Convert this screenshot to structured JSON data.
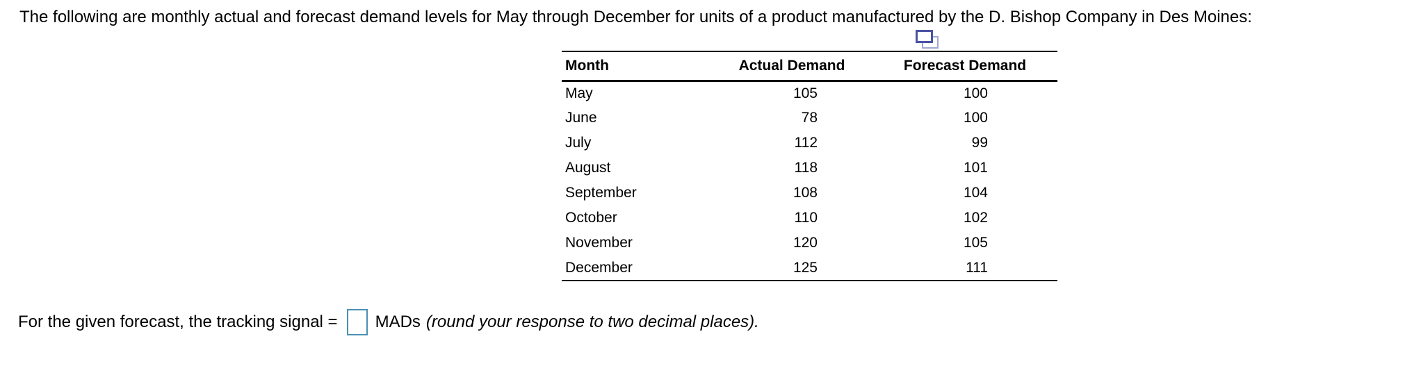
{
  "title": "The following are monthly actual and forecast demand levels for May through December for units of a product manufactured by the D. Bishop Company in Des Moines:",
  "icons": {
    "copy_icon_name": "copy-table-icon"
  },
  "table": {
    "headers": [
      "Month",
      "Actual Demand",
      "Forecast Demand"
    ],
    "rows": [
      {
        "month": "May",
        "actual": "105",
        "forecast": "100"
      },
      {
        "month": "June",
        "actual": "78",
        "forecast": "100"
      },
      {
        "month": "July",
        "actual": "112",
        "forecast": "99"
      },
      {
        "month": "August",
        "actual": "118",
        "forecast": "101"
      },
      {
        "month": "September",
        "actual": "108",
        "forecast": "104"
      },
      {
        "month": "October",
        "actual": "110",
        "forecast": "102"
      },
      {
        "month": "November",
        "actual": "120",
        "forecast": "105"
      },
      {
        "month": "December",
        "actual": "125",
        "forecast": "111"
      }
    ]
  },
  "question": {
    "prefix": "For the given forecast, the tracking signal =",
    "answer_value": "",
    "answer_placeholder": "",
    "unit": "MADs",
    "instruction": "(round your response to two decimal places)."
  },
  "colors": {
    "text": "#000000",
    "table_border": "#000000",
    "input_border": "#4a90b2",
    "copy_icon_front": "#4b53a3",
    "copy_icon_back": "#a0a6d2"
  }
}
